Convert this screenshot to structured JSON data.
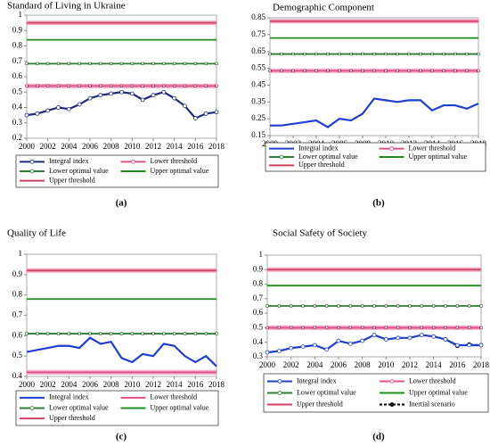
{
  "chart_data": [
    {
      "type": "line",
      "title": "Standard of Living in Ukraine",
      "label": "(a)",
      "x": [
        2000,
        2001,
        2002,
        2003,
        2004,
        2005,
        2006,
        2007,
        2008,
        2009,
        2010,
        2011,
        2012,
        2013,
        2014,
        2015,
        2016,
        2017,
        2018
      ],
      "xlim": [
        2000,
        2018
      ],
      "xticks": [
        2000,
        2002,
        2004,
        2006,
        2008,
        2010,
        2012,
        2014,
        2016,
        2018
      ],
      "ylim": [
        0.2,
        1
      ],
      "yticks": [
        0.2,
        0.3,
        0.4,
        0.5,
        0.6,
        0.7,
        0.8,
        0.9,
        1
      ],
      "series": [
        {
          "name": "Integral index",
          "color": "#1f2a80",
          "markers": true,
          "values": [
            0.35,
            0.36,
            0.38,
            0.4,
            0.39,
            0.42,
            0.46,
            0.48,
            0.49,
            0.5,
            0.49,
            0.45,
            0.48,
            0.5,
            0.46,
            0.41,
            0.33,
            0.36,
            0.37
          ]
        },
        {
          "name": "Lower threshold",
          "color": "#e0508a",
          "markers": true,
          "values": [
            0.54,
            0.54,
            0.54,
            0.54,
            0.54,
            0.54,
            0.54,
            0.54,
            0.54,
            0.54,
            0.54,
            0.54,
            0.54,
            0.54,
            0.54,
            0.54,
            0.54,
            0.54,
            0.54
          ]
        },
        {
          "name": "Lower optimal value",
          "color": "#2e7d32",
          "markers": true,
          "values": [
            0.685,
            0.685,
            0.685,
            0.685,
            0.685,
            0.685,
            0.685,
            0.685,
            0.685,
            0.685,
            0.685,
            0.685,
            0.685,
            0.685,
            0.685,
            0.685,
            0.685,
            0.685,
            0.685
          ]
        },
        {
          "name": "Upper optimal value",
          "color": "#1e8c1e",
          "markers": false,
          "values": [
            0.84,
            0.84,
            0.84,
            0.84,
            0.84,
            0.84,
            0.84,
            0.84,
            0.84,
            0.84,
            0.84,
            0.84,
            0.84,
            0.84,
            0.84,
            0.84,
            0.84,
            0.84,
            0.84
          ]
        },
        {
          "name": "Upper threshold",
          "color": "#d04060",
          "markers": false,
          "values": [
            0.95,
            0.95,
            0.95,
            0.95,
            0.95,
            0.95,
            0.95,
            0.95,
            0.95,
            0.95,
            0.95,
            0.95,
            0.95,
            0.95,
            0.95,
            0.95,
            0.95,
            0.95,
            0.95
          ]
        }
      ]
    },
    {
      "type": "line",
      "title": "Demographic Component",
      "label": "(b)",
      "x": [
        2000,
        2001,
        2002,
        2003,
        2004,
        2005,
        2006,
        2007,
        2008,
        2009,
        2010,
        2011,
        2012,
        2013,
        2014,
        2015,
        2016,
        2017,
        2018
      ],
      "xlim": [
        2000,
        2018
      ],
      "xticks": [
        2000,
        2002,
        2004,
        2006,
        2008,
        2010,
        2012,
        2014,
        2016,
        2018
      ],
      "ylim": [
        0.15,
        0.85
      ],
      "yticks": [
        0.15,
        0.25,
        0.35,
        0.45,
        0.55,
        0.65,
        0.75,
        0.85
      ],
      "series": [
        {
          "name": "Integral index",
          "color": "#1f3fd0",
          "markers": false,
          "values": [
            0.21,
            0.21,
            0.22,
            0.23,
            0.24,
            0.2,
            0.25,
            0.24,
            0.28,
            0.37,
            0.36,
            0.35,
            0.36,
            0.36,
            0.3,
            0.33,
            0.33,
            0.31,
            0.34
          ]
        },
        {
          "name": "Lower threshold",
          "color": "#e0508a",
          "markers": true,
          "values": [
            0.535,
            0.535,
            0.535,
            0.535,
            0.535,
            0.535,
            0.535,
            0.535,
            0.535,
            0.535,
            0.535,
            0.535,
            0.535,
            0.535,
            0.535,
            0.535,
            0.535,
            0.535,
            0.535
          ]
        },
        {
          "name": "Lower optimal value",
          "color": "#2e7d32",
          "markers": true,
          "values": [
            0.635,
            0.635,
            0.635,
            0.635,
            0.635,
            0.635,
            0.635,
            0.635,
            0.635,
            0.635,
            0.635,
            0.635,
            0.635,
            0.635,
            0.635,
            0.635,
            0.635,
            0.635,
            0.635
          ]
        },
        {
          "name": "Upper optimal value",
          "color": "#1e8c1e",
          "markers": false,
          "values": [
            0.73,
            0.73,
            0.73,
            0.73,
            0.73,
            0.73,
            0.73,
            0.73,
            0.73,
            0.73,
            0.73,
            0.73,
            0.73,
            0.73,
            0.73,
            0.73,
            0.73,
            0.73,
            0.73
          ]
        },
        {
          "name": "Upper threshold",
          "color": "#d04060",
          "markers": false,
          "values": [
            0.83,
            0.83,
            0.83,
            0.83,
            0.83,
            0.83,
            0.83,
            0.83,
            0.83,
            0.83,
            0.83,
            0.83,
            0.83,
            0.83,
            0.83,
            0.83,
            0.83,
            0.83,
            0.83
          ]
        }
      ]
    },
    {
      "type": "line",
      "title": "Quality of Life",
      "label": "(c)",
      "x": [
        2000,
        2001,
        2002,
        2003,
        2004,
        2005,
        2006,
        2007,
        2008,
        2009,
        2010,
        2011,
        2012,
        2013,
        2014,
        2015,
        2016,
        2017,
        2018
      ],
      "xlim": [
        2000,
        2018
      ],
      "xticks": [
        2000,
        2002,
        2004,
        2006,
        2008,
        2010,
        2012,
        2014,
        2016,
        2018
      ],
      "ylim": [
        0.4,
        1
      ],
      "yticks": [
        0.4,
        0.5,
        0.6,
        0.7,
        0.8,
        0.9,
        1
      ],
      "series": [
        {
          "name": "Integral index",
          "color": "#1f3fd0",
          "markers": false,
          "values": [
            0.52,
            0.53,
            0.54,
            0.55,
            0.55,
            0.54,
            0.59,
            0.56,
            0.57,
            0.49,
            0.47,
            0.51,
            0.5,
            0.56,
            0.55,
            0.5,
            0.47,
            0.5,
            0.45
          ]
        },
        {
          "name": "Lower threshold",
          "color": "#e0508a",
          "markers": false,
          "values": [
            0.42,
            0.42,
            0.42,
            0.42,
            0.42,
            0.42,
            0.42,
            0.42,
            0.42,
            0.42,
            0.42,
            0.42,
            0.42,
            0.42,
            0.42,
            0.42,
            0.42,
            0.42,
            0.42
          ]
        },
        {
          "name": "Lower optimal value",
          "color": "#2e7d32",
          "markers": true,
          "values": [
            0.61,
            0.61,
            0.61,
            0.61,
            0.61,
            0.61,
            0.61,
            0.61,
            0.61,
            0.61,
            0.61,
            0.61,
            0.61,
            0.61,
            0.61,
            0.61,
            0.61,
            0.61,
            0.61
          ]
        },
        {
          "name": "Upper optimal value",
          "color": "#1e8c1e",
          "markers": false,
          "values": [
            0.78,
            0.78,
            0.78,
            0.78,
            0.78,
            0.78,
            0.78,
            0.78,
            0.78,
            0.78,
            0.78,
            0.78,
            0.78,
            0.78,
            0.78,
            0.78,
            0.78,
            0.78,
            0.78
          ]
        },
        {
          "name": "Upper threshold",
          "color": "#d04060",
          "markers": false,
          "values": [
            0.92,
            0.92,
            0.92,
            0.92,
            0.92,
            0.92,
            0.92,
            0.92,
            0.92,
            0.92,
            0.92,
            0.92,
            0.92,
            0.92,
            0.92,
            0.92,
            0.92,
            0.92,
            0.92
          ]
        }
      ]
    },
    {
      "type": "line",
      "title": "Social Safety of Society",
      "label": "(d)",
      "x": [
        2000,
        2001,
        2002,
        2003,
        2004,
        2005,
        2006,
        2007,
        2008,
        2009,
        2010,
        2011,
        2012,
        2013,
        2014,
        2015,
        2016,
        2017,
        2018
      ],
      "xlim": [
        2000,
        2018
      ],
      "xticks": [
        2000,
        2002,
        2004,
        2006,
        2008,
        2010,
        2012,
        2014,
        2016,
        2018
      ],
      "ylim": [
        0.3,
        1
      ],
      "yticks": [
        0.3,
        0.4,
        0.5,
        0.6,
        0.7,
        0.8,
        0.9,
        1
      ],
      "series": [
        {
          "name": "Integral index",
          "color": "#1f3fd0",
          "markers": true,
          "values": [
            0.33,
            0.34,
            0.36,
            0.37,
            0.38,
            0.35,
            0.41,
            0.39,
            0.41,
            0.45,
            0.42,
            0.43,
            0.43,
            0.45,
            0.44,
            0.42,
            0.38,
            0.38,
            0.38
          ]
        },
        {
          "name": "Lower threshold",
          "color": "#e0508a",
          "markers": true,
          "values": [
            0.5,
            0.5,
            0.5,
            0.5,
            0.5,
            0.5,
            0.5,
            0.5,
            0.5,
            0.5,
            0.5,
            0.5,
            0.5,
            0.5,
            0.5,
            0.5,
            0.5,
            0.5,
            0.5
          ]
        },
        {
          "name": "Lower optimal value",
          "color": "#2e7d32",
          "markers": true,
          "values": [
            0.65,
            0.65,
            0.65,
            0.65,
            0.65,
            0.65,
            0.65,
            0.65,
            0.65,
            0.65,
            0.65,
            0.65,
            0.65,
            0.65,
            0.65,
            0.65,
            0.65,
            0.65,
            0.65
          ]
        },
        {
          "name": "Upper optimal value",
          "color": "#1e8c1e",
          "markers": false,
          "values": [
            0.79,
            0.79,
            0.79,
            0.79,
            0.79,
            0.79,
            0.79,
            0.79,
            0.79,
            0.79,
            0.79,
            0.79,
            0.79,
            0.79,
            0.79,
            0.79,
            0.79,
            0.79,
            0.79
          ]
        },
        {
          "name": "Upper threshold",
          "color": "#d04060",
          "markers": false,
          "values": [
            0.9,
            0.9,
            0.9,
            0.9,
            0.9,
            0.9,
            0.9,
            0.9,
            0.9,
            0.9,
            0.9,
            0.9,
            0.9,
            0.9,
            0.9,
            0.9,
            0.9,
            0.9,
            0.9
          ]
        },
        {
          "name": "Inertial scenario",
          "color": "#000000",
          "markers": true,
          "dash": true,
          "values": [
            null,
            null,
            null,
            null,
            null,
            null,
            null,
            null,
            null,
            null,
            null,
            null,
            null,
            null,
            null,
            0.42,
            0.375,
            0.385,
            0.38
          ]
        }
      ]
    }
  ]
}
